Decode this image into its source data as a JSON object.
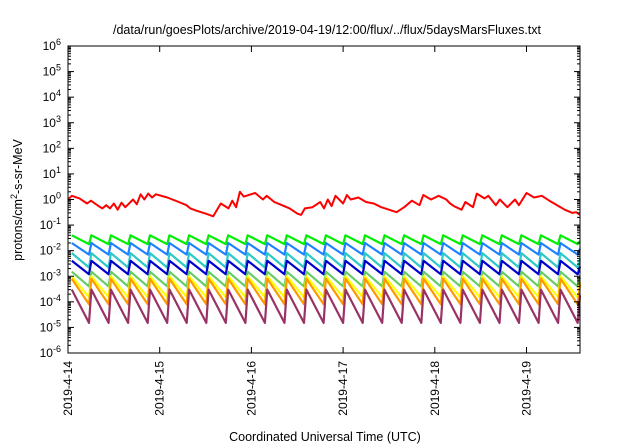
{
  "chart_data": {
    "type": "line",
    "title": "/data/run/goesPlots/archive/2019-04-19/12:00/flux/../flux/5daysMarsFluxes.txt",
    "xlabel": "Coordinated Universal Time (UTC)",
    "ylabel": {
      "pre": "protons/cm",
      "sup": "2",
      "post": "-s-sr-MeV"
    },
    "y_scale": "log",
    "ylim": [
      1e-06,
      1000000.0
    ],
    "y_ticks": [
      {
        "value": 1e-06,
        "base": "10",
        "exp": "-6"
      },
      {
        "value": 1e-05,
        "base": "10",
        "exp": "-5"
      },
      {
        "value": 0.0001,
        "base": "10",
        "exp": "-4"
      },
      {
        "value": 0.001,
        "base": "10",
        "exp": "-3"
      },
      {
        "value": 0.01,
        "base": "10",
        "exp": "-2"
      },
      {
        "value": 0.1,
        "base": "10",
        "exp": "-1"
      },
      {
        "value": 1,
        "base": "10",
        "exp": "0"
      },
      {
        "value": 10,
        "base": "10",
        "exp": "1"
      },
      {
        "value": 100,
        "base": "10",
        "exp": "2"
      },
      {
        "value": 1000,
        "base": "10",
        "exp": "3"
      },
      {
        "value": 10000,
        "base": "10",
        "exp": "4"
      },
      {
        "value": 100000,
        "base": "10",
        "exp": "5"
      },
      {
        "value": 1000000,
        "base": "10",
        "exp": "6"
      }
    ],
    "xlim": [
      "2019-04-14T00:00",
      "2019-04-19T14:00"
    ],
    "x_ticks": [
      {
        "value": "2019-04-14T00:00",
        "label": "2019-4-14"
      },
      {
        "value": "2019-04-15T00:00",
        "label": "2019-4-15"
      },
      {
        "value": "2019-04-16T00:00",
        "label": "2019-4-16"
      },
      {
        "value": "2019-04-17T00:00",
        "label": "2019-4-17"
      },
      {
        "value": "2019-04-18T00:00",
        "label": "2019-4-18"
      },
      {
        "value": "2019-04-19T00:00",
        "label": "2019-4-19"
      }
    ],
    "grid": false,
    "legend": "none",
    "series": [
      {
        "color": "#ff0000",
        "x": [
          "2019-04-14T00:00",
          "2019-04-14T01:00",
          "2019-04-14T03:00",
          "2019-04-14T05:00",
          "2019-04-14T06:00",
          "2019-04-14T08:00",
          "2019-04-14T09:00",
          "2019-04-14T10:00",
          "2019-04-14T11:00",
          "2019-04-14T12:00",
          "2019-04-14T13:00",
          "2019-04-14T14:00",
          "2019-04-14T15:00",
          "2019-04-14T17:00",
          "2019-04-14T18:00",
          "2019-04-14T19:00",
          "2019-04-14T20:00",
          "2019-04-14T21:00",
          "2019-04-14T22:00",
          "2019-04-14T23:00",
          "2019-04-15T02:00",
          "2019-04-15T05:00",
          "2019-04-15T07:00",
          "2019-04-15T08:00",
          "2019-04-15T10:00",
          "2019-04-15T12:00",
          "2019-04-15T14:00",
          "2019-04-15T16:00",
          "2019-04-15T18:00",
          "2019-04-15T19:00",
          "2019-04-15T20:00",
          "2019-04-15T21:00",
          "2019-04-15T22:00",
          "2019-04-16T01:00",
          "2019-04-16T03:00",
          "2019-04-16T04:00",
          "2019-04-16T06:00",
          "2019-04-16T08:00",
          "2019-04-16T10:00",
          "2019-04-16T12:00",
          "2019-04-16T13:00",
          "2019-04-16T14:00",
          "2019-04-16T16:00",
          "2019-04-16T18:00",
          "2019-04-16T19:00",
          "2019-04-16T20:00",
          "2019-04-16T21:00",
          "2019-04-16T22:00",
          "2019-04-17T00:00",
          "2019-04-17T01:00",
          "2019-04-17T02:00",
          "2019-04-17T04:00",
          "2019-04-17T06:00",
          "2019-04-17T08:00",
          "2019-04-17T10:00",
          "2019-04-17T12:00",
          "2019-04-17T14:00",
          "2019-04-17T16:00",
          "2019-04-17T18:00",
          "2019-04-17T20:00",
          "2019-04-17T21:00",
          "2019-04-17T23:00",
          "2019-04-18T01:00",
          "2019-04-18T03:00",
          "2019-04-18T04:00",
          "2019-04-18T05:00",
          "2019-04-18T07:00",
          "2019-04-18T08:00",
          "2019-04-18T10:00",
          "2019-04-18T11:00",
          "2019-04-18T13:00",
          "2019-04-18T14:00",
          "2019-04-18T16:00",
          "2019-04-18T17:00",
          "2019-04-18T19:00",
          "2019-04-18T21:00",
          "2019-04-18T22:00",
          "2019-04-19T00:00",
          "2019-04-19T02:00",
          "2019-04-19T04:00",
          "2019-04-19T06:00",
          "2019-04-19T08:00",
          "2019-04-19T10:00",
          "2019-04-19T12:00",
          "2019-04-19T13:00",
          "2019-04-19T14:00"
        ],
        "y": [
          1.0,
          1.4,
          1.1,
          0.7,
          0.9,
          0.55,
          0.45,
          0.6,
          0.45,
          0.7,
          0.4,
          0.75,
          0.5,
          1.0,
          0.65,
          1.6,
          1.0,
          1.7,
          1.2,
          1.6,
          1.2,
          0.8,
          0.6,
          0.45,
          0.35,
          0.28,
          0.22,
          0.7,
          0.45,
          0.9,
          0.5,
          2.0,
          1.3,
          1.8,
          1.0,
          1.4,
          0.8,
          0.6,
          0.45,
          0.28,
          0.25,
          0.45,
          0.5,
          0.8,
          0.45,
          1.0,
          0.55,
          1.4,
          0.7,
          1.5,
          1.0,
          1.2,
          0.8,
          0.7,
          0.5,
          0.4,
          0.32,
          0.5,
          0.9,
          0.6,
          1.5,
          1.0,
          1.4,
          1.0,
          0.7,
          0.55,
          0.4,
          0.8,
          0.5,
          1.7,
          1.1,
          1.4,
          0.6,
          1.0,
          0.5,
          1.0,
          0.6,
          1.8,
          1.2,
          1.4,
          0.9,
          0.6,
          0.4,
          0.3,
          0.32,
          0.25
        ]
      },
      {
        "color": "#00ee00",
        "peak": 0.04,
        "trough": 0.018,
        "x_start": "2019-04-14T01:00",
        "x_end": "2019-04-19T14:00",
        "cycles": 26
      },
      {
        "color": "#1e82ff",
        "peak": 0.02,
        "trough": 0.007,
        "x_start": "2019-04-14T01:00",
        "x_end": "2019-04-19T14:00",
        "cycles": 26
      },
      {
        "color": "#2ec8c8",
        "peak": 0.008,
        "trough": 0.0022,
        "x_start": "2019-04-14T01:00",
        "x_end": "2019-04-19T14:00",
        "cycles": 26
      },
      {
        "color": "#0000cc",
        "peak": 0.004,
        "trough": 0.0012,
        "x_start": "2019-04-14T01:00",
        "x_end": "2019-04-19T14:00",
        "cycles": 26
      },
      {
        "color": "#66cc66",
        "peak": 0.0015,
        "trough": 0.0004,
        "x_start": "2019-04-14T01:00",
        "x_end": "2019-04-19T14:00",
        "cycles": 26
      },
      {
        "color": "#ffff00",
        "peak": 0.001,
        "trough": 0.00015,
        "x_start": "2019-04-14T01:00",
        "x_end": "2019-04-19T14:00",
        "cycles": 26
      },
      {
        "color": "#ff9900",
        "peak": 0.0008,
        "trough": 8e-05,
        "x_start": "2019-04-14T01:00",
        "x_end": "2019-04-19T14:00",
        "cycles": 26
      },
      {
        "color": "#993366",
        "peak": 0.0003,
        "trough": 1.5e-05,
        "x_start": "2019-04-14T01:00",
        "x_end": "2019-04-19T14:00",
        "cycles": 26
      }
    ]
  }
}
